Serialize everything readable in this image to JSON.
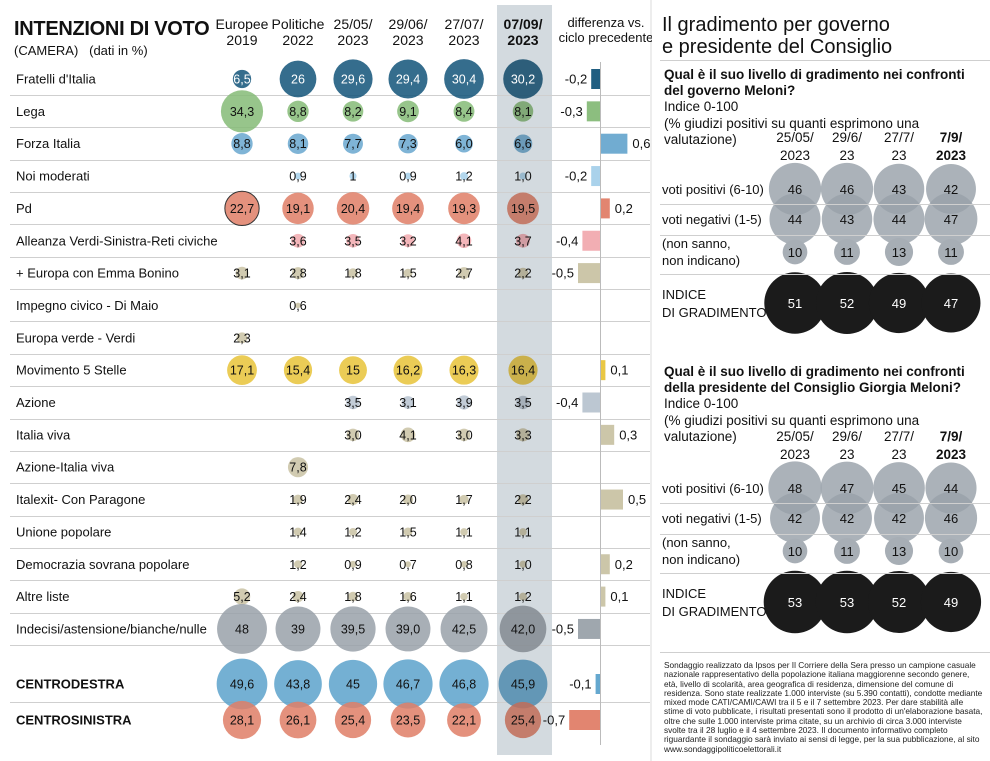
{
  "left": {
    "title": "INTENZIONI DI VOTO",
    "subtitle_main": "(CAMERA)",
    "subtitle_units": "(dati in %)",
    "columns": [
      {
        "line1": "Europee",
        "line2": "2019"
      },
      {
        "line1": "Politiche",
        "line2": "2022"
      },
      {
        "line1": "25/05/",
        "line2": "2023"
      },
      {
        "line1": "29/06/",
        "line2": "2023"
      },
      {
        "line1": "27/07/",
        "line2": "2023"
      },
      {
        "line1": "07/09/",
        "line2": "2023"
      }
    ],
    "diff_header_line1": "differenza vs.",
    "diff_header_line2": "ciclo precedente"
  },
  "right": {
    "title_line1": "Il gradimento per governo",
    "title_line2": "e presidente del Consiglio",
    "footnote": "Sondaggio realizzato da Ipsos per Il Corriere della Sera presso un campione casuale nazionale rappresentativo della popolazione italiana maggiorenne secondo genere, età, livello di scolarità, area geografica di residenza, dimensione del comune di residenza. Sono state realizzate 1.000 interviste (su 5.390 contatti), condotte mediante mixed mode CATI/CAMI/CAWI tra il 5 e il 7 settembre 2023. Per dare stabilità alle stime di voto pubblicate, i risultati presentati sono il prodotto di un'elaborazione basata, oltre che sulle 1.000 interviste prima citate, su un archivio di circa 3.000 interviste svolte tra il 28 luglio e il 4 settembre 2023. Il documento informativo completo riguardante il sondaggio sarà inviato ai sensi di legge, per la sua pubblicazione, al sito www.sondaggipoliticoelettorali.it"
  },
  "chart_data": [
    {
      "type": "table",
      "title": "INTENZIONI DI VOTO (CAMERA) (dati in %)",
      "columns": [
        "Europee 2019",
        "Politiche 2022",
        "25/05/2023",
        "29/06/2023",
        "27/07/2023",
        "07/09/2023"
      ],
      "diff_label": "differenza vs. ciclo precedente",
      "rows": [
        {
          "party": "Fratelli d'Italia",
          "color": "#14557a",
          "bold": false,
          "values": [
            "6,5",
            "26",
            "29,6",
            "29,4",
            "30,4",
            "30,2"
          ],
          "diff": "-0,2"
        },
        {
          "party": "Lega",
          "color": "#86bb78",
          "bold": false,
          "values": [
            "34,3",
            "8,8",
            "8,2",
            "9,1",
            "8,4",
            "8,1"
          ],
          "diff": "-0,3"
        },
        {
          "party": "Forza Italia",
          "color": "#6aa8cf",
          "bold": false,
          "values": [
            "8,8",
            "8,1",
            "7,7",
            "7,3",
            "6,0",
            "6,6"
          ],
          "diff": "0,6"
        },
        {
          "party": "Noi moderati",
          "color": "#a6d0ea",
          "bold": false,
          "values": [
            "",
            "0,9",
            "1",
            "0,9",
            "1,2",
            "1,0"
          ],
          "diff": "-0,2"
        },
        {
          "party": "Pd",
          "color": "#e07f68",
          "bold": false,
          "values": [
            "22,7",
            "19,1",
            "20,4",
            "19,4",
            "19,3",
            "19,5"
          ],
          "diff": "0,2"
        },
        {
          "party": "Alleanza Verdi-Sinistra-Reti civiche",
          "color": "#f1aaaf",
          "bold": false,
          "values": [
            "",
            "3,6",
            "3,5",
            "3,2",
            "4,1",
            "3,7"
          ],
          "diff": "-0,4"
        },
        {
          "party": "+ Europa con Emma Bonino",
          "color": "#c9c3a4",
          "bold": false,
          "values": [
            "3,1",
            "2,8",
            "1,8",
            "1,5",
            "2,7",
            "2,2"
          ],
          "diff": "-0,5"
        },
        {
          "party": "Impegno civico - Di Maio",
          "color": "#c9c3a4",
          "bold": false,
          "values": [
            "",
            "0,6",
            "",
            "",
            "",
            ""
          ],
          "diff": ""
        },
        {
          "party": "Europa verde - Verdi",
          "color": "#c9c3a4",
          "bold": false,
          "values": [
            "2,3",
            "",
            "",
            "",
            "",
            ""
          ],
          "diff": ""
        },
        {
          "party": "Movimento 5 Stelle",
          "color": "#e8c43a",
          "bold": false,
          "values": [
            "17,1",
            "15,4",
            "15",
            "16,2",
            "16,3",
            "16,4"
          ],
          "diff": "0,1"
        },
        {
          "party": "Azione",
          "color": "#b8c4d0",
          "bold": false,
          "values": [
            "",
            "",
            "3,5",
            "3,1",
            "3,9",
            "3,5"
          ],
          "diff": "-0,4"
        },
        {
          "party": "Italia viva",
          "color": "#c9c3a4",
          "bold": false,
          "values": [
            "",
            "",
            "3,0",
            "4,1",
            "3,0",
            "3,3"
          ],
          "diff": "0,3"
        },
        {
          "party": "Azione-Italia viva",
          "color": "#c9c3a4",
          "bold": false,
          "values": [
            "",
            "7,8",
            "",
            "",
            "",
            ""
          ],
          "diff": ""
        },
        {
          "party": "Italexit- Con Paragone",
          "color": "#c9c3a4",
          "bold": false,
          "values": [
            "",
            "1,9",
            "2,4",
            "2,0",
            "1,7",
            "2,2"
          ],
          "diff": "0,5"
        },
        {
          "party": "Unione popolare",
          "color": "#c9c3a4",
          "bold": false,
          "values": [
            "",
            "1,4",
            "1,2",
            "1,5",
            "1,1",
            "1,1"
          ],
          "diff": ""
        },
        {
          "party": "Democrazia sovrana popolare",
          "color": "#c9c3a4",
          "bold": false,
          "values": [
            "",
            "1,2",
            "0,9",
            "0,7",
            "0,8",
            "1,0"
          ],
          "diff": "0,2"
        },
        {
          "party": "Altre liste",
          "color": "#c9c3a4",
          "bold": false,
          "values": [
            "5,2",
            "2,4",
            "1,8",
            "1,6",
            "1,1",
            "1,2"
          ],
          "diff": "0,1"
        },
        {
          "party": "Indecisi/astensione/bianche/nulle",
          "color": "#9aa2aa",
          "bold": false,
          "values": [
            "48",
            "39",
            "39,5",
            "39,0",
            "42,5",
            "42,0"
          ],
          "diff": "-0,5"
        },
        {
          "party": "CENTRODESTRA",
          "color": "#5da3cc",
          "bold": true,
          "values": [
            "49,6",
            "43,8",
            "45",
            "46,7",
            "46,8",
            "45,9"
          ],
          "diff": "-0,1"
        },
        {
          "party": "CENTROSINISTRA",
          "color": "#e07f68",
          "bold": true,
          "values": [
            "28,1",
            "26,1",
            "25,4",
            "23,5",
            "22,1",
            "25,4"
          ],
          "diff": "-0,7"
        }
      ]
    },
    {
      "type": "table",
      "title": "Qual è il suo livello di gradimento nei confronti del governo Meloni?",
      "subtitle": "Indice 0-100",
      "note": "(% giudizi positivi su quanti esprimono una valutazione)",
      "dates": [
        {
          "line1": "25/05/",
          "line2": "2023"
        },
        {
          "line1": "29/6/",
          "line2": "23"
        },
        {
          "line1": "27/7/",
          "line2": "23"
        },
        {
          "line1": "7/9/",
          "line2": "2023"
        }
      ],
      "rows": [
        {
          "label": "voti positivi (6-10)",
          "values": [
            46,
            46,
            43,
            42
          ]
        },
        {
          "label": "voti negativi (1-5)",
          "values": [
            44,
            43,
            44,
            47
          ]
        },
        {
          "label_line1": "(non sanno,",
          "label_line2": "non indicano)",
          "values": [
            10,
            11,
            13,
            11
          ]
        }
      ],
      "index_label_line1": "INDICE",
      "index_label_line2": "DI GRADIMENTO",
      "index_values": [
        51,
        52,
        49,
        47
      ]
    },
    {
      "type": "table",
      "title": "Qual è il suo livello di gradimento nei confronti della presidente del Consiglio Giorgia Meloni?",
      "subtitle": "Indice 0-100",
      "note": "(% giudizi positivi su quanti esprimono una valutazione)",
      "dates": [
        {
          "line1": "25/05/",
          "line2": "2023"
        },
        {
          "line1": "29/6/",
          "line2": "23"
        },
        {
          "line1": "27/7/",
          "line2": "23"
        },
        {
          "line1": "7/9/",
          "line2": "2023"
        }
      ],
      "rows": [
        {
          "label": "voti positivi (6-10)",
          "values": [
            48,
            47,
            45,
            44
          ]
        },
        {
          "label": "voti negativi (1-5)",
          "values": [
            42,
            42,
            42,
            46
          ]
        },
        {
          "label_line1": "(non sanno,",
          "label_line2": "non indicano)",
          "values": [
            10,
            11,
            13,
            10
          ]
        }
      ],
      "index_label_line1": "INDICE",
      "index_label_line2": "DI GRADIMENTO",
      "index_values": [
        53,
        53,
        52,
        49
      ]
    }
  ]
}
